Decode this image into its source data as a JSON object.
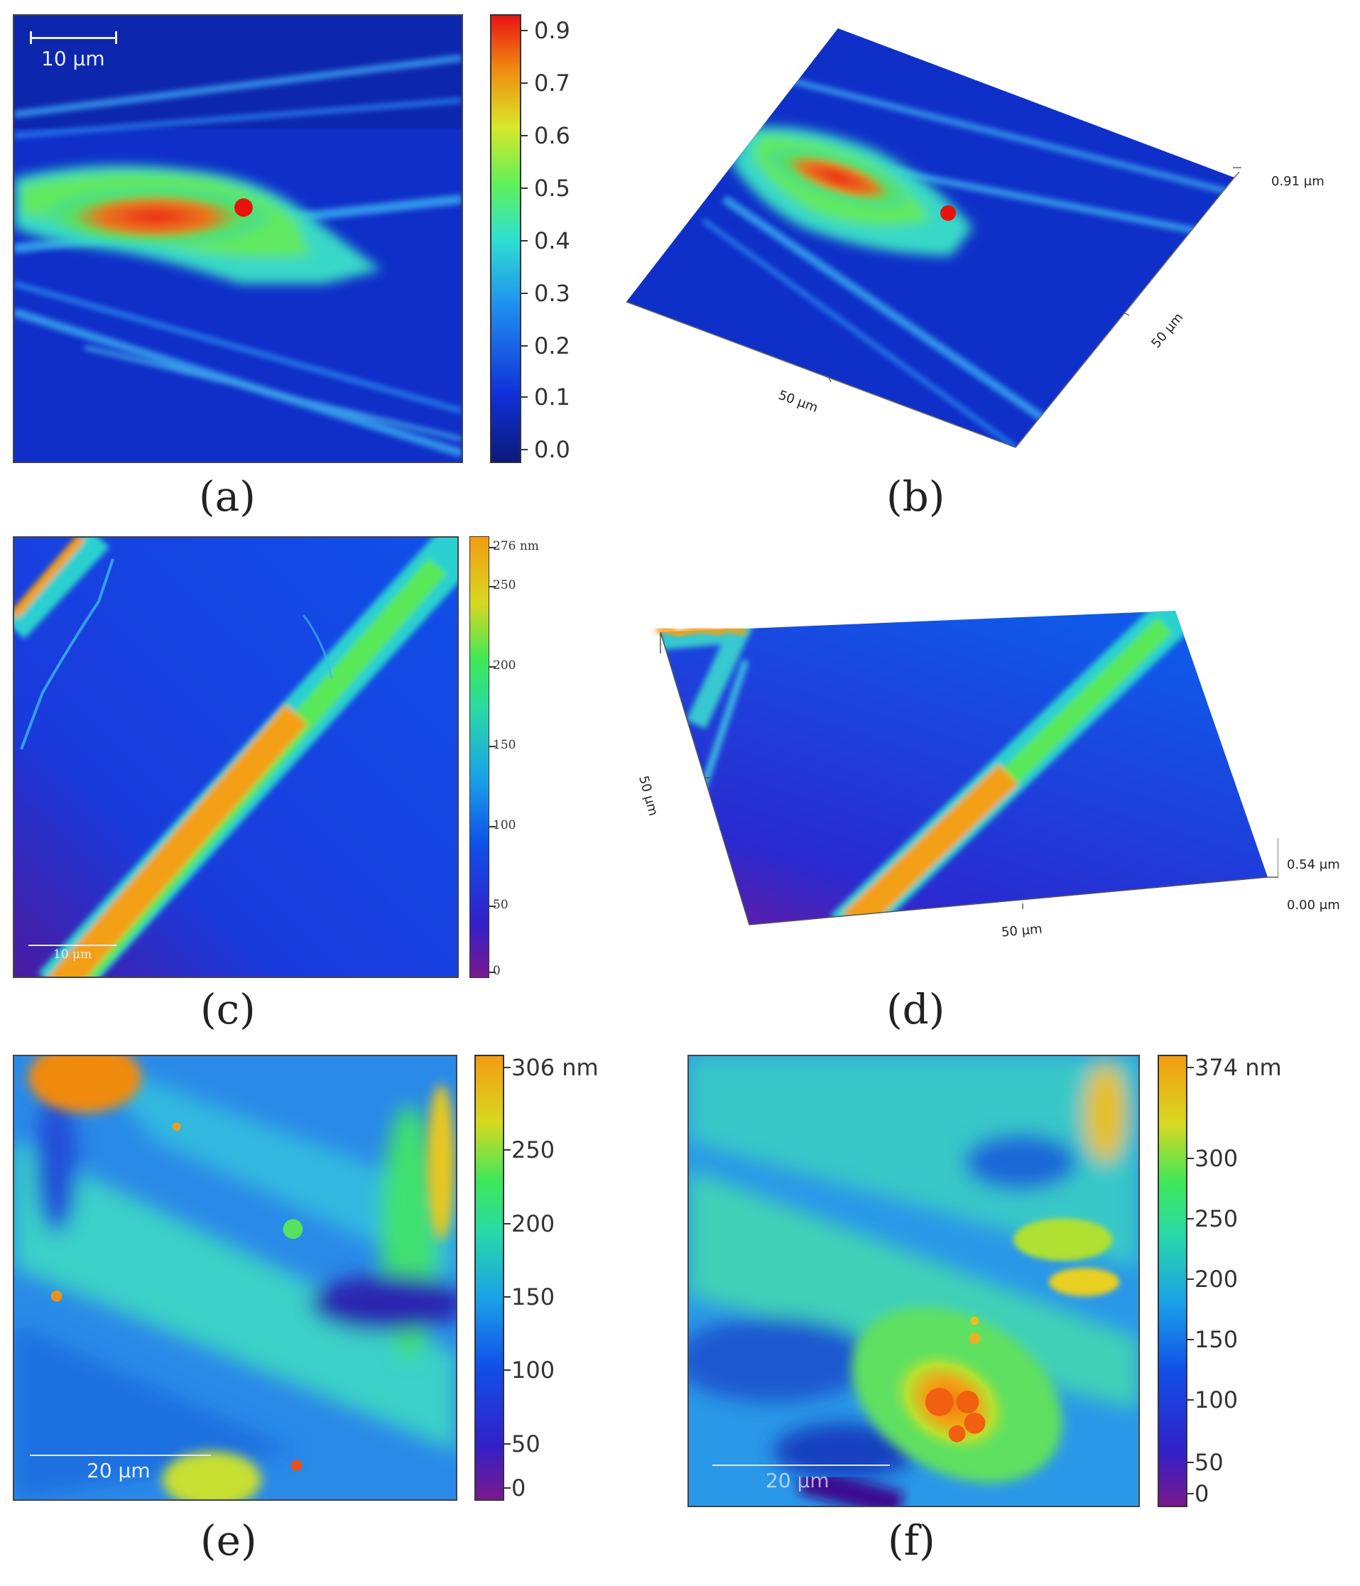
{
  "colors": {
    "low": "#0a1f8c",
    "mid_low": "#1a4fe0",
    "cyan": "#2ad0e8",
    "green": "#3fe08a",
    "yellow": "#e6e234",
    "orange": "#f39c12",
    "red": "#e8261c",
    "purple": "#6b1a8e"
  },
  "panels": {
    "a": {
      "caption": "(a)",
      "scale_bar": "10 μm",
      "colorbar_ticks": [
        "0.9",
        "0.7",
        "0.6",
        "0.5",
        "0.4",
        "0.3",
        "0.2",
        "0.1",
        "0.0"
      ]
    },
    "b": {
      "caption": "(b)",
      "z_label": "0.91 μm",
      "x_label": "50 μm",
      "y_label": "50 μm"
    },
    "c": {
      "caption": "(c)",
      "scale_bar": "10 μm",
      "colorbar_ticks": [
        "276 nm",
        "250",
        "200",
        "150",
        "100",
        "50",
        "0"
      ]
    },
    "d": {
      "caption": "(d)",
      "z_top": "0.54 μm",
      "z_bottom": "0.00 μm",
      "x_label": "50 μm",
      "y_label": "50 μm"
    },
    "e": {
      "caption": "(e)",
      "scale_bar": "20 μm",
      "colorbar_ticks": [
        "306 nm",
        "250",
        "200",
        "150",
        "100",
        "50",
        "0"
      ]
    },
    "f": {
      "caption": "(f)",
      "scale_bar": "20 μm",
      "colorbar_ticks": [
        "374 nm",
        "300",
        "250",
        "200",
        "150",
        "100",
        "50",
        "0"
      ]
    }
  }
}
